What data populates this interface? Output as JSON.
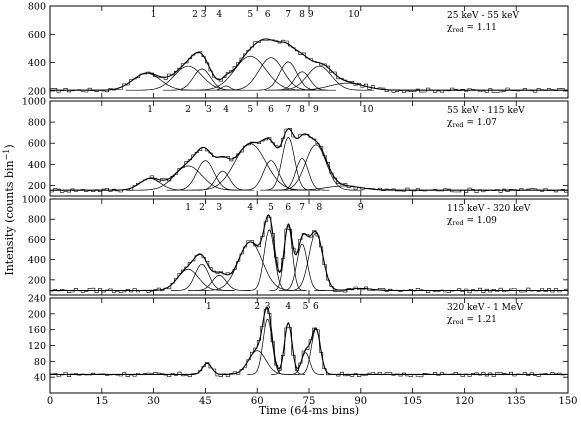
{
  "chart_data": [
    {
      "type": "line",
      "band": "25 keV - 55 keV",
      "chi_label": "χ",
      "chi_sub": "red",
      "chi_value": "= 1.11",
      "ylim": [
        150,
        800
      ],
      "yticks": [
        200,
        400,
        600,
        800
      ],
      "baseline": 205,
      "pulse_labels": [
        "1",
        "2",
        "3",
        "4",
        "5",
        "6",
        "7",
        "8",
        "9",
        "10"
      ],
      "pulse_label_x": [
        30,
        42,
        44.5,
        49,
        58,
        63,
        69,
        73,
        75.5,
        88
      ],
      "pulses": [
        {
          "t": 28,
          "amp": 120,
          "w": 4
        },
        {
          "t": 40,
          "amp": 170,
          "w": 4
        },
        {
          "t": 44,
          "amp": 150,
          "w": 2.5
        },
        {
          "t": 51,
          "amp": 30,
          "w": 1.2
        },
        {
          "t": 58,
          "amp": 240,
          "w": 4.5
        },
        {
          "t": 64,
          "amp": 230,
          "w": 3.5
        },
        {
          "t": 69,
          "amp": 200,
          "w": 2.5
        },
        {
          "t": 73,
          "amp": 130,
          "w": 2.2
        },
        {
          "t": 78,
          "amp": 170,
          "w": 3.5
        },
        {
          "t": 86,
          "amp": 50,
          "w": 5
        }
      ]
    },
    {
      "type": "line",
      "band": "55 keV - 115 keV",
      "chi_label": "χ",
      "chi_sub": "red",
      "chi_value": "= 1.07",
      "ylim": [
        100,
        1000
      ],
      "yticks": [
        200,
        400,
        600,
        800,
        1000
      ],
      "baseline": 155,
      "pulse_labels": [
        "1",
        "2",
        "3",
        "4",
        "5",
        "6",
        "7",
        "8",
        "9",
        "10"
      ],
      "pulse_label_x": [
        29,
        40,
        46,
        51,
        58,
        64,
        69,
        73,
        77,
        92
      ],
      "pulses": [
        {
          "t": 29,
          "amp": 110,
          "w": 3
        },
        {
          "t": 40,
          "amp": 230,
          "w": 4
        },
        {
          "t": 45,
          "amp": 280,
          "w": 2.5
        },
        {
          "t": 50,
          "amp": 180,
          "w": 2
        },
        {
          "t": 58,
          "amp": 440,
          "w": 4.5
        },
        {
          "t": 64,
          "amp": 280,
          "w": 2.2
        },
        {
          "t": 69,
          "amp": 500,
          "w": 1.8
        },
        {
          "t": 73,
          "amp": 300,
          "w": 1.8
        },
        {
          "t": 77,
          "amp": 430,
          "w": 3
        },
        {
          "t": 85,
          "amp": 40,
          "w": 5
        }
      ]
    },
    {
      "type": "line",
      "band": "115 keV - 320 keV",
      "chi_label": "χ",
      "chi_sub": "red",
      "chi_value": "= 1.09",
      "ylim": [
        50,
        1000
      ],
      "yticks": [
        200,
        400,
        600,
        800,
        1000
      ],
      "baseline": 95,
      "pulse_labels": [
        "1",
        "2",
        "3",
        "4",
        "5",
        "6",
        "7",
        "8",
        "9"
      ],
      "pulse_label_x": [
        40,
        44,
        49,
        58,
        64,
        69,
        73,
        78,
        90
      ],
      "pulses": [
        {
          "t": 40,
          "amp": 210,
          "w": 3
        },
        {
          "t": 44,
          "amp": 260,
          "w": 2
        },
        {
          "t": 49,
          "amp": 150,
          "w": 2
        },
        {
          "t": 58,
          "amp": 480,
          "w": 3.5
        },
        {
          "t": 63.5,
          "amp": 600,
          "w": 1.5
        },
        {
          "t": 69,
          "amp": 640,
          "w": 1.2
        },
        {
          "t": 73,
          "amp": 460,
          "w": 1.5
        },
        {
          "t": 77,
          "amp": 570,
          "w": 2
        },
        {
          "t": 90,
          "amp": 20,
          "w": 3
        }
      ]
    },
    {
      "type": "line",
      "band": "320 keV - 1 MeV",
      "chi_label": "χ",
      "chi_sub": "red",
      "chi_value": "= 1.21",
      "ylim": [
        0,
        240
      ],
      "yticks": [
        40,
        80,
        120,
        160,
        200,
        240
      ],
      "baseline": 47,
      "pulse_labels": [
        "1",
        "2",
        "3",
        "4",
        "5",
        "6"
      ],
      "pulse_label_x": [
        46,
        60,
        63,
        69,
        74,
        77
      ],
      "pulses": [
        {
          "t": 45.5,
          "amp": 28,
          "w": 1.3
        },
        {
          "t": 60,
          "amp": 60,
          "w": 2.5
        },
        {
          "t": 63,
          "amp": 140,
          "w": 1.3
        },
        {
          "t": 69,
          "amp": 130,
          "w": 1.1
        },
        {
          "t": 74,
          "amp": 55,
          "w": 1.2
        },
        {
          "t": 77,
          "amp": 115,
          "w": 1.3
        }
      ]
    }
  ],
  "xlim": [
    0,
    150
  ],
  "xticks": [
    0,
    15,
    30,
    45,
    60,
    75,
    90,
    105,
    120,
    135,
    150
  ],
  "xlabel": "Time (64-ms bins)",
  "ylabel": "Intensity (counts bin",
  "ylabel_sup": "−1",
  "ylabel_end": ")"
}
